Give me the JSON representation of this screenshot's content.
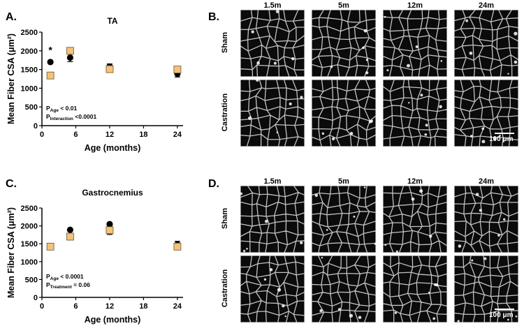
{
  "panels": {
    "A": {
      "letter": "A."
    },
    "B": {
      "letter": "B."
    },
    "C": {
      "letter": "C."
    },
    "D": {
      "letter": "D."
    }
  },
  "colors": {
    "sham": "#000000",
    "castration": "#f2c37a",
    "castration_stroke": "#6b5230"
  },
  "chart_data": [
    {
      "type": "scatter",
      "title": "TA",
      "xlabel": "Age (months)",
      "ylabel": "Mean Fiber CSA (μm²)",
      "xlim": [
        0,
        25
      ],
      "ylim": [
        0,
        2500
      ],
      "xticks": [
        0,
        6,
        12,
        18,
        24
      ],
      "yticks": [
        0,
        500,
        1000,
        1500,
        2000,
        2500
      ],
      "series": [
        {
          "marker": "circle",
          "x": [
            1.5,
            5,
            12,
            24
          ],
          "y": [
            1700,
            1820,
            1580,
            1390
          ],
          "err": [
            0,
            110,
            70,
            90
          ]
        },
        {
          "marker": "square",
          "x": [
            1.5,
            5,
            12,
            24
          ],
          "y": [
            1340,
            2000,
            1510,
            1500
          ],
          "err": [
            0,
            0,
            0,
            0
          ]
        }
      ],
      "annotations": [
        {
          "text": "*",
          "x": 1.5,
          "y": 1930
        },
        {
          "main": "P",
          "sub": "Age",
          "rest": " < 0.01"
        },
        {
          "main": "P",
          "sub": "Interaction",
          "rest": " <0.0001"
        }
      ]
    },
    {
      "type": "scatter",
      "title": "Gastrocnemius",
      "xlabel": "Age (months)",
      "ylabel": "Mean Fiber CSA (μm²)",
      "xlim": [
        0,
        25
      ],
      "ylim": [
        0,
        2500
      ],
      "xticks": [
        0,
        6,
        12,
        18,
        24
      ],
      "yticks": [
        0,
        500,
        1000,
        1500,
        2000,
        2500
      ],
      "series": [
        {
          "marker": "circle",
          "x": [
            1.5,
            5,
            12,
            24
          ],
          "y": [
            1420,
            1890,
            2050,
            1480
          ],
          "err": [
            0,
            0,
            0,
            90
          ]
        },
        {
          "marker": "square",
          "x": [
            1.5,
            5,
            12,
            24
          ],
          "y": [
            1420,
            1700,
            1880,
            1420
          ],
          "err": [
            0,
            90,
            120,
            0
          ]
        }
      ],
      "annotations": [
        {
          "main": "P",
          "sub": "Age",
          "rest": " < 0.0001"
        },
        {
          "main": "P",
          "sub": "Treatment",
          "rest": " = 0.06"
        }
      ]
    }
  ],
  "micrographs": {
    "B": {
      "columns": [
        "1.5m",
        "5m",
        "12m",
        "24m"
      ],
      "rows": [
        "Sham",
        "Castration"
      ],
      "scale_bar": "100 μm"
    },
    "D": {
      "columns": [
        "1.5m",
        "5m",
        "12m",
        "24m"
      ],
      "rows": [
        "Sham",
        "Castration"
      ],
      "scale_bar": "100 μm"
    }
  }
}
